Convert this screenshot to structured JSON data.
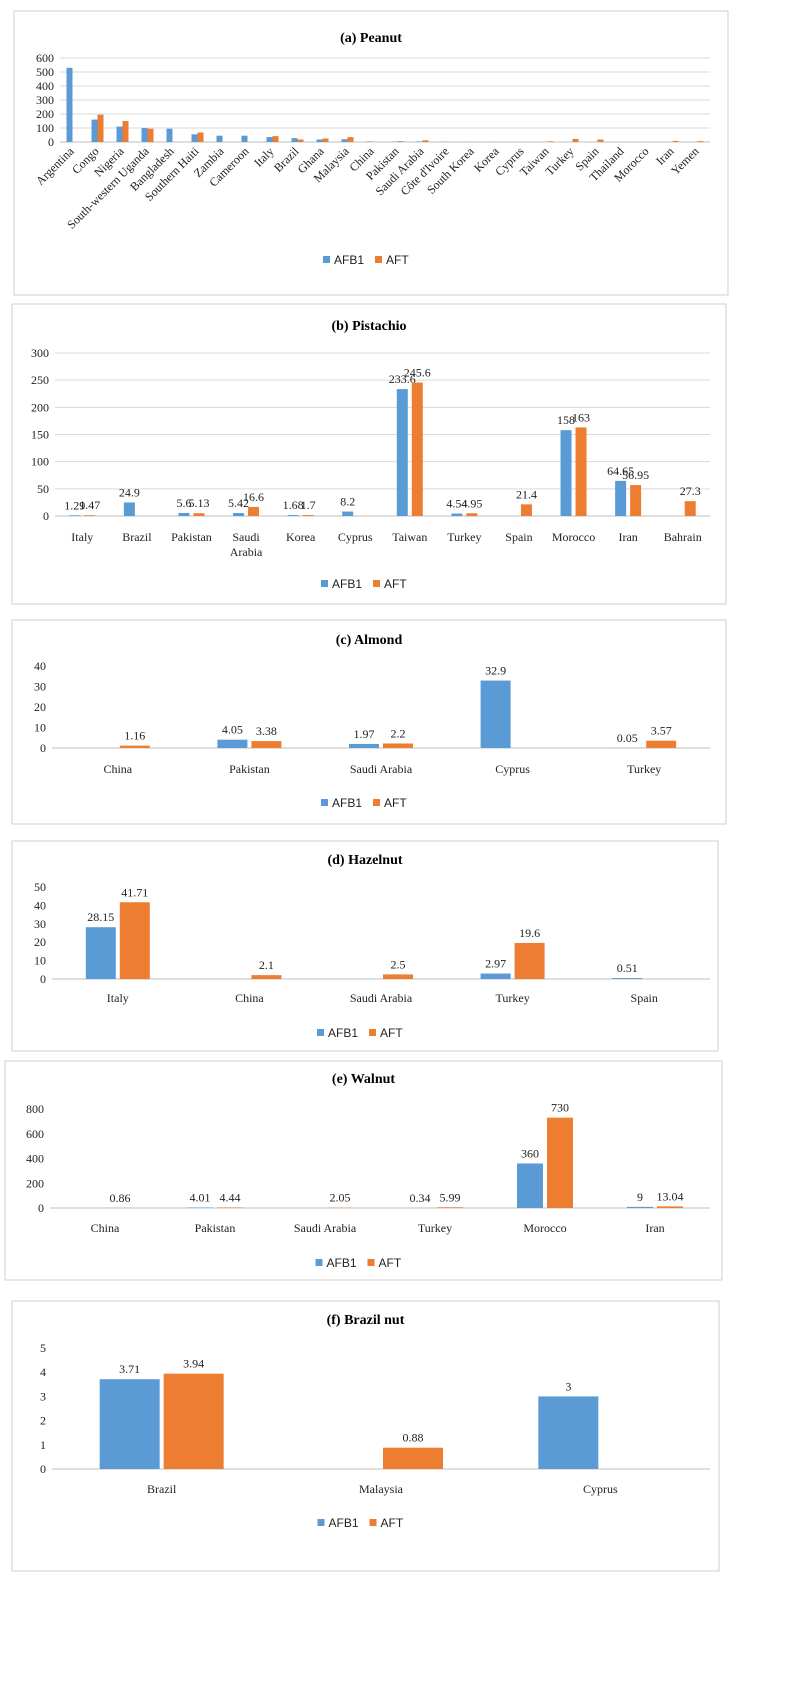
{
  "colors": {
    "afb1": "#5b9bd5",
    "aft": "#ed7d31"
  },
  "legend": {
    "afb1": "AFB1",
    "aft": "AFT"
  },
  "chart_data": [
    {
      "id": "peanut",
      "type": "bar",
      "title": "(a)    Peanut",
      "ylim": [
        0,
        600
      ],
      "yticks": [
        0,
        100,
        200,
        300,
        400,
        500,
        600
      ],
      "grid": true,
      "legend": "bottom",
      "rotate_labels": true,
      "show_values": false,
      "categories": [
        "Argentina",
        "Congo",
        "Nigeria",
        "South-western Uganda",
        "Bangladesh",
        "Southern Haiti",
        "Zambia",
        "Cameroon",
        "Italy",
        "Brazil",
        "Ghana",
        "Malaysia",
        "China",
        "Pakistan",
        "Saudi Arabia",
        "Côte d'Ivoire",
        "South Korea",
        "Korea",
        "Cyprus",
        "Taiwan",
        "Turkey",
        "Spain",
        "Thailand",
        "Morocco",
        "Iran",
        "Yemen"
      ],
      "series": [
        {
          "name": "AFB1",
          "values": [
            530,
            160,
            110,
            100,
            95,
            55,
            45,
            45,
            35,
            28,
            18,
            20,
            4,
            2,
            4,
            2,
            1,
            1,
            1,
            0,
            0,
            0,
            0,
            0,
            0,
            0
          ]
        },
        {
          "name": "AFT",
          "values": [
            null,
            195,
            150,
            95,
            null,
            68,
            null,
            null,
            42,
            18,
            25,
            35,
            null,
            6,
            12,
            null,
            null,
            null,
            null,
            5,
            22,
            18,
            null,
            null,
            8,
            6
          ]
        }
      ]
    },
    {
      "id": "pistachio",
      "type": "bar",
      "title": "(b)  Pistachio",
      "ylim": [
        0,
        300
      ],
      "yticks": [
        0,
        50,
        100,
        150,
        200,
        250,
        300
      ],
      "grid": true,
      "legend": "bottom",
      "rotate_labels": false,
      "show_values": true,
      "categories": [
        "Italy",
        "Brazil",
        "Pakistan",
        "Saudi\nArabia",
        "Korea",
        "Cyprus",
        "Taiwan",
        "Turkey",
        "Spain",
        "Morocco",
        "Iran",
        "Bahrain"
      ],
      "series": [
        {
          "name": "AFB1",
          "values": [
            1.29,
            24.9,
            5.6,
            5.42,
            1.68,
            8.2,
            233.6,
            4.54,
            null,
            158,
            64.65,
            null
          ]
        },
        {
          "name": "AFT",
          "values": [
            1.47,
            null,
            5.13,
            16.6,
            1.7,
            null,
            245.6,
            4.95,
            21.4,
            163,
            56.95,
            27.3
          ]
        }
      ]
    },
    {
      "id": "almond",
      "type": "bar",
      "title": "(c)     Almond",
      "ylim": [
        0,
        40
      ],
      "yticks": [
        0,
        10,
        20,
        30,
        40
      ],
      "grid": false,
      "legend": "bottom",
      "rotate_labels": false,
      "show_values": true,
      "categories": [
        "China",
        "Pakistan",
        "Saudi Arabia",
        "Cyprus",
        "Turkey"
      ],
      "series": [
        {
          "name": "AFB1",
          "values": [
            null,
            4.05,
            1.97,
            32.9,
            0.05
          ]
        },
        {
          "name": "AFT",
          "values": [
            1.16,
            3.38,
            2.2,
            null,
            3.57
          ]
        }
      ]
    },
    {
      "id": "hazelnut",
      "type": "bar",
      "title": "(d)     Hazelnut",
      "ylim": [
        0,
        50
      ],
      "yticks": [
        0,
        10,
        20,
        30,
        40,
        50
      ],
      "grid": false,
      "legend": "bottom",
      "rotate_labels": false,
      "show_values": true,
      "categories": [
        "Italy",
        "China",
        "Saudi Arabia",
        "Turkey",
        "Spain"
      ],
      "series": [
        {
          "name": "AFB1",
          "values": [
            28.15,
            null,
            null,
            2.97,
            0.51
          ]
        },
        {
          "name": "AFT",
          "values": [
            41.71,
            2.1,
            2.5,
            19.6,
            null
          ]
        }
      ]
    },
    {
      "id": "walnut",
      "type": "bar",
      "title": "(e)     Walnut",
      "ylim": [
        0,
        800
      ],
      "yticks": [
        0,
        200,
        400,
        600,
        800
      ],
      "grid": false,
      "legend": "bottom",
      "rotate_labels": false,
      "show_values": true,
      "categories": [
        "China",
        "Pakistan",
        "Saudi Arabia",
        "Turkey",
        "Morocco",
        "Iran"
      ],
      "series": [
        {
          "name": "AFB1",
          "values": [
            null,
            4.01,
            null,
            0.34,
            360,
            9
          ]
        },
        {
          "name": "AFT",
          "values": [
            0.86,
            4.44,
            2.05,
            5.99,
            730,
            13.04
          ]
        }
      ]
    },
    {
      "id": "brazil-nut",
      "type": "bar",
      "title": "(f)     Brazil nut",
      "ylim": [
        0,
        5
      ],
      "yticks": [
        0,
        1,
        2,
        3,
        4,
        5
      ],
      "grid": false,
      "legend": "bottom",
      "rotate_labels": false,
      "show_values": true,
      "categories": [
        "Brazil",
        "Malaysia",
        "Cyprus"
      ],
      "series": [
        {
          "name": "AFB1",
          "values": [
            3.71,
            null,
            3
          ]
        },
        {
          "name": "AFT",
          "values": [
            3.94,
            0.88,
            null
          ]
        }
      ]
    }
  ]
}
